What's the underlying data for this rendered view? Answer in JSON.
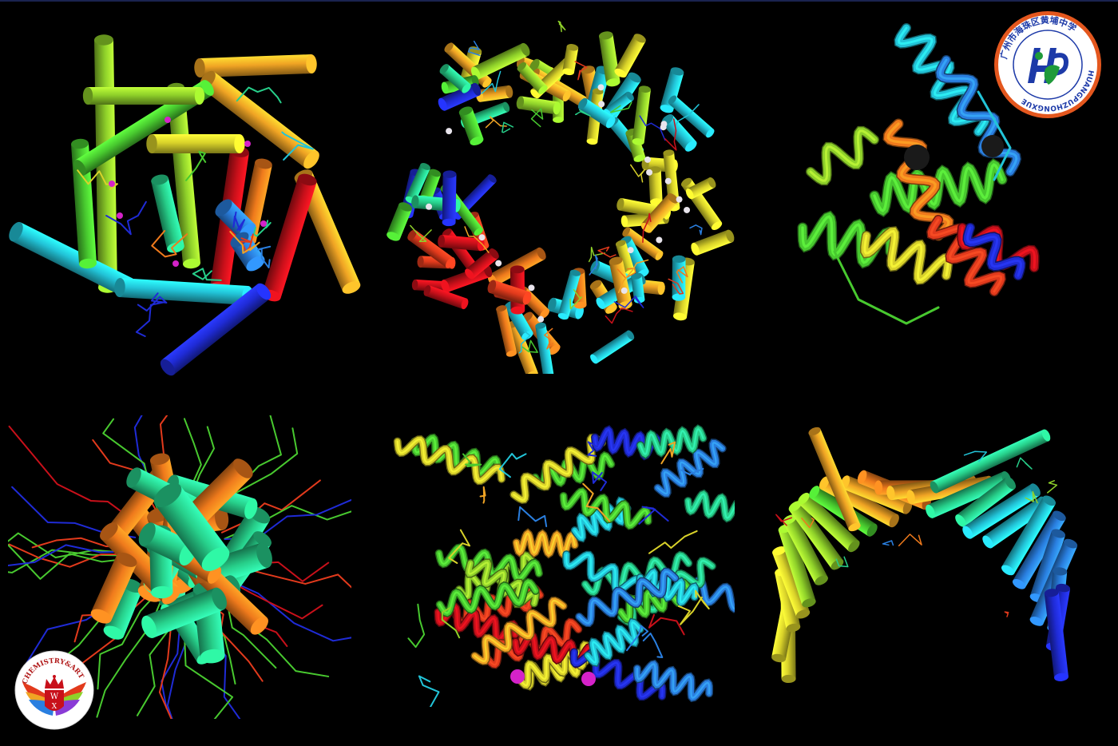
{
  "colors": {
    "background": "#000000",
    "rainbow": [
      "#1f2bd6",
      "#2a7fe0",
      "#22c4d8",
      "#27cf8a",
      "#48c92f",
      "#8fd12a",
      "#d9d22a",
      "#f0a424",
      "#ef7a1c",
      "#e23a1c",
      "#c8101a"
    ],
    "school_badge_border": "#e4571e",
    "school_badge_text": "#1d3aa8",
    "ligand_magenta": "#d522c9"
  },
  "badges": {
    "school": {
      "circle_text": "广州市海珠区黄埔中学",
      "latin_text": "HUANGPUZHONGXUE",
      "emblem_icon": "hp-monogram-icon"
    },
    "chemistry_art": {
      "arc_text": "CHEMISTRY&ART",
      "monogram_top": "W",
      "monogram_bottom": "X",
      "crown_icon": "crown-icon",
      "wings_icon": "rainbow-wings-icon"
    }
  },
  "panels": [
    {
      "id": "top-left",
      "style": "cylinders",
      "motif": "helical barrel"
    },
    {
      "id": "top-center",
      "style": "cylinders",
      "motif": "ring assembly"
    },
    {
      "id": "top-right",
      "style": "ribbon",
      "motif": "globular fold"
    },
    {
      "id": "bottom-left",
      "style": "cylinders",
      "motif": "bundle with tails"
    },
    {
      "id": "bottom-center",
      "style": "ribbon",
      "motif": "dimer"
    },
    {
      "id": "bottom-right",
      "style": "cylinders",
      "motif": "solenoid"
    }
  ]
}
